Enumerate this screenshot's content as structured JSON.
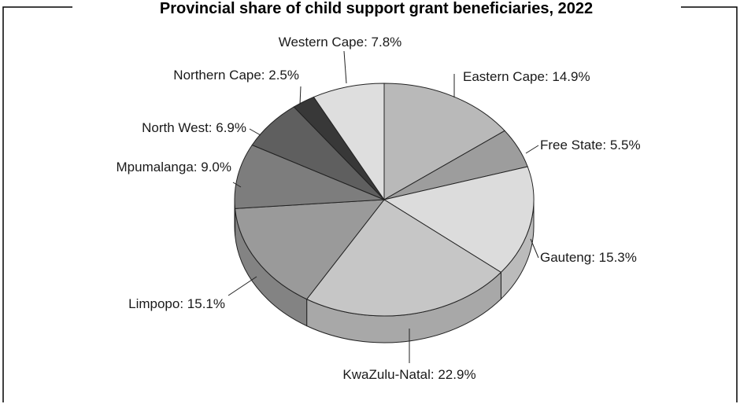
{
  "chart_data": {
    "type": "pie",
    "title": "Provincial share of child support grant beneficiaries, 2022",
    "unit": "%",
    "slices": [
      {
        "label": "Eastern Cape",
        "value": 14.9,
        "display": "Eastern Cape: 14.9%",
        "color": "#b9b9b9"
      },
      {
        "label": "Free State",
        "value": 5.5,
        "display": "Free State: 5.5%",
        "color": "#9d9d9d"
      },
      {
        "label": "Gauteng",
        "value": 15.3,
        "display": "Gauteng: 15.3%",
        "color": "#dcdcdc"
      },
      {
        "label": "KwaZulu-Natal",
        "value": 22.9,
        "display": "KwaZulu-Natal: 22.9%",
        "color": "#c6c6c6"
      },
      {
        "label": "Limpopo",
        "value": 15.1,
        "display": "Limpopo: 15.1%",
        "color": "#9a9a9a"
      },
      {
        "label": "Mpumalanga",
        "value": 9.0,
        "display": "Mpumalanga: 9.0%",
        "color": "#7d7d7d"
      },
      {
        "label": "North West",
        "value": 6.9,
        "display": "North West: 6.9%",
        "color": "#5f5f5f"
      },
      {
        "label": "Northern Cape",
        "value": 2.5,
        "display": "Northern Cape: 2.5%",
        "color": "#383838"
      },
      {
        "label": "Western Cape",
        "value": 7.8,
        "display": "Western Cape: 7.8%",
        "color": "#dedede"
      }
    ]
  }
}
